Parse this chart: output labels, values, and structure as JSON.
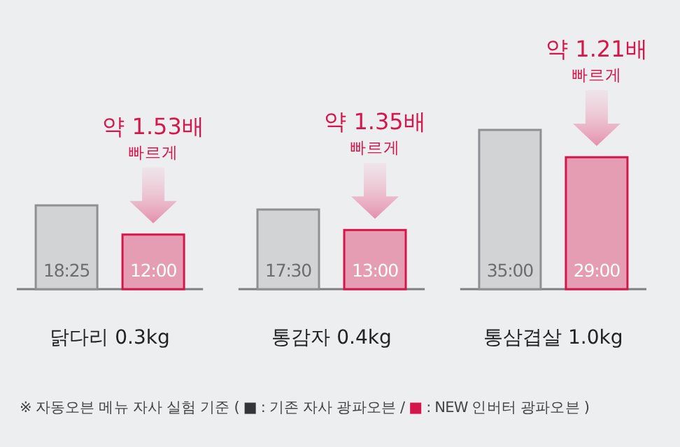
{
  "chart_data": {
    "type": "bar",
    "categories": [
      "닭다리 0.3kg",
      "통감자 0.4kg",
      "통삼겹살 1.0kg"
    ],
    "series": [
      {
        "color": "#d1d3d5",
        "values": [
          18.42,
          17.5,
          35
        ],
        "value_labels": [
          "18:25",
          "17:30",
          "35:00"
        ]
      },
      {
        "color": "#e59db3",
        "values": [
          12,
          13,
          29
        ],
        "value_labels": [
          "12:00",
          "13:00",
          "29:00"
        ]
      }
    ],
    "annotations": [
      "약 1.53배",
      "빠르게",
      "약 1.35배",
      "빠르게",
      "약 1.21배",
      "빠르게",
      "※ 자동오븐 메뉴 자사 실험 기준 ( ■ : 기존 자사 광파오븐 / ■ : NEW 인버터 광파오븐 )"
    ]
  }
}
